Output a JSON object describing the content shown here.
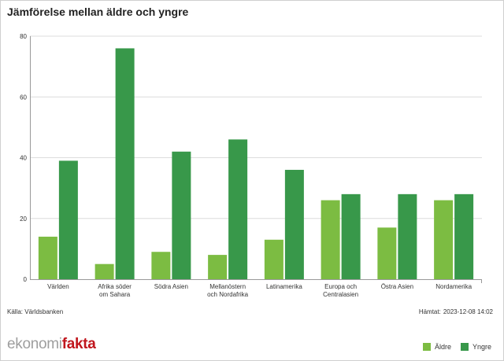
{
  "title": "Jämförelse mellan äldre och yngre",
  "source": "Källa: Världsbanken",
  "fetched": {
    "label": "Hämtat:",
    "value": "2023-12-08 14:02"
  },
  "logo": {
    "part1": "ekonomi",
    "part2": "fakta"
  },
  "colors": {
    "aldre": "#7cbc42",
    "yngre": "#38984a",
    "grid": "#dcdcdc",
    "axis": "#999999"
  },
  "chart_data": {
    "type": "bar",
    "title": "Jämförelse mellan äldre och yngre",
    "xlabel": "",
    "ylabel": "",
    "ylim": [
      0,
      80
    ],
    "yticks": [
      0,
      20,
      40,
      60,
      80
    ],
    "grid": true,
    "legend_position": "bottom-right",
    "categories": [
      [
        "Världen"
      ],
      [
        "Afrika söder",
        "om Sahara"
      ],
      [
        "Södra Asien"
      ],
      [
        "Mellanöstern",
        "och Nordafrika"
      ],
      [
        "Latinamerika"
      ],
      [
        "Europa och",
        "Centralasien"
      ],
      [
        "Östra Asien"
      ],
      [
        "Nordamerika"
      ]
    ],
    "series": [
      {
        "name": "Äldre",
        "color": "#7cbc42",
        "values": [
          14,
          5,
          9,
          8,
          13,
          26,
          17,
          26
        ]
      },
      {
        "name": "Yngre",
        "color": "#38984a",
        "values": [
          39,
          76,
          42,
          46,
          36,
          28,
          28,
          28
        ]
      }
    ]
  }
}
